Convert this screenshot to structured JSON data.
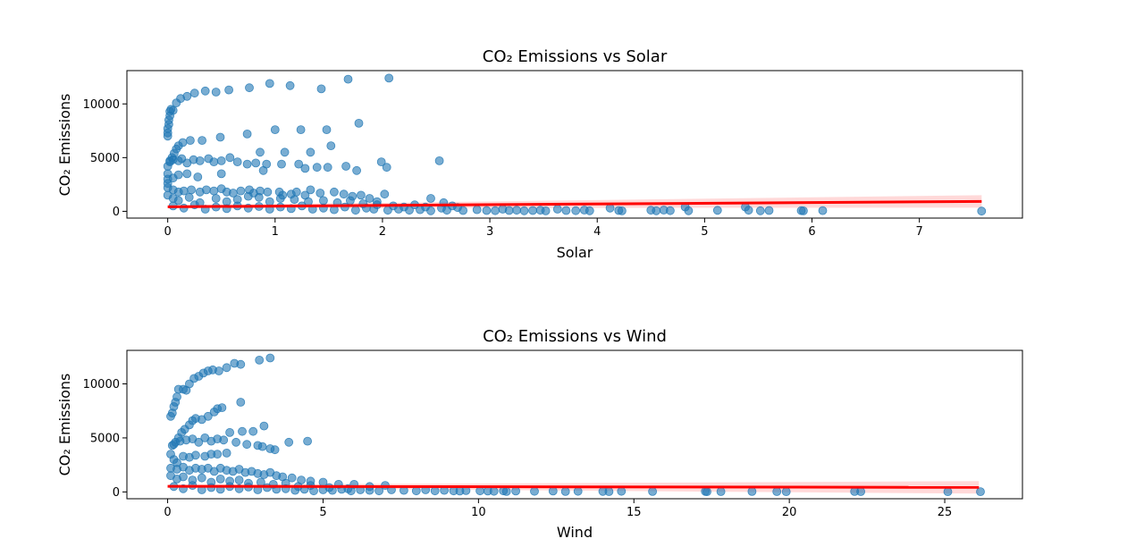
{
  "chart_data": [
    {
      "type": "scatter",
      "title": "CO₂ Emissions vs Solar",
      "xlabel": "Solar",
      "ylabel": "CO₂ Emissions",
      "xlim": [
        -0.38,
        7.96
      ],
      "ylim": [
        -630,
        13100
      ],
      "xticks": [
        0,
        1,
        2,
        3,
        4,
        5,
        6,
        7
      ],
      "yticks": [
        0,
        5000,
        10000
      ],
      "point_color": "#1f77b4",
      "regression": {
        "color": "#ff0000",
        "x": [
          0,
          7.58
        ],
        "y": [
          420,
          920
        ]
      },
      "points": [
        [
          0,
          7000
        ],
        [
          0,
          7300
        ],
        [
          0,
          7700
        ],
        [
          0.01,
          8100
        ],
        [
          0.01,
          8500
        ],
        [
          0.02,
          8900
        ],
        [
          0.02,
          9300
        ],
        [
          0.03,
          9500
        ],
        [
          0.05,
          9400
        ],
        [
          0.08,
          10100
        ],
        [
          0.12,
          10500
        ],
        [
          0.18,
          10700
        ],
        [
          0.25,
          11000
        ],
        [
          0.35,
          11200
        ],
        [
          0.45,
          11100
        ],
        [
          0.57,
          11300
        ],
        [
          0.76,
          11500
        ],
        [
          0.95,
          11900
        ],
        [
          1.14,
          11700
        ],
        [
          1.43,
          11400
        ],
        [
          1.68,
          12300
        ],
        [
          2.06,
          12400
        ],
        [
          0,
          4200
        ],
        [
          0.02,
          4600
        ],
        [
          0.04,
          5000
        ],
        [
          0.06,
          5400
        ],
        [
          0.08,
          5800
        ],
        [
          0.1,
          6100
        ],
        [
          0.14,
          6400
        ],
        [
          0.21,
          6600
        ],
        [
          0.32,
          6600
        ],
        [
          0.49,
          6900
        ],
        [
          0.74,
          7200
        ],
        [
          1.0,
          7600
        ],
        [
          1.24,
          7600
        ],
        [
          1.48,
          7600
        ],
        [
          1.52,
          6100
        ],
        [
          1.78,
          8200
        ],
        [
          0.02,
          4700
        ],
        [
          0.05,
          4800
        ],
        [
          0.1,
          4700
        ],
        [
          0.13,
          4900
        ],
        [
          0.18,
          4500
        ],
        [
          0.24,
          4800
        ],
        [
          0.3,
          4700
        ],
        [
          0.38,
          4900
        ],
        [
          0.43,
          4600
        ],
        [
          0.5,
          4700
        ],
        [
          0.58,
          5000
        ],
        [
          0.65,
          4600
        ],
        [
          0.74,
          4400
        ],
        [
          0.82,
          4500
        ],
        [
          0.86,
          5500
        ],
        [
          0.89,
          3800
        ],
        [
          0.92,
          4400
        ],
        [
          1.06,
          4400
        ],
        [
          1.09,
          5500
        ],
        [
          1.22,
          4400
        ],
        [
          1.28,
          4000
        ],
        [
          1.33,
          5500
        ],
        [
          1.39,
          4100
        ],
        [
          1.49,
          4100
        ],
        [
          1.66,
          4200
        ],
        [
          1.76,
          3800
        ],
        [
          1.99,
          4600
        ],
        [
          2.04,
          4100
        ],
        [
          2.53,
          4700
        ],
        [
          0,
          3500
        ],
        [
          0,
          3000
        ],
        [
          0,
          2600
        ],
        [
          0.05,
          3100
        ],
        [
          0.1,
          3400
        ],
        [
          0.18,
          3500
        ],
        [
          0.28,
          3200
        ],
        [
          0.5,
          3500
        ],
        [
          0,
          2200
        ],
        [
          0.05,
          2000
        ],
        [
          0.1,
          1800
        ],
        [
          0.15,
          1900
        ],
        [
          0.22,
          2000
        ],
        [
          0.3,
          1800
        ],
        [
          0.36,
          2000
        ],
        [
          0.43,
          1900
        ],
        [
          0.5,
          2100
        ],
        [
          0.55,
          1800
        ],
        [
          0.61,
          1700
        ],
        [
          0.68,
          1900
        ],
        [
          0.76,
          2000
        ],
        [
          0.8,
          1700
        ],
        [
          0.86,
          1900
        ],
        [
          0.93,
          1800
        ],
        [
          1.04,
          1800
        ],
        [
          1.07,
          1500
        ],
        [
          1.15,
          1600
        ],
        [
          1.2,
          1800
        ],
        [
          1.28,
          1500
        ],
        [
          1.33,
          2000
        ],
        [
          1.42,
          1700
        ],
        [
          1.55,
          1800
        ],
        [
          1.64,
          1600
        ],
        [
          1.72,
          1400
        ],
        [
          1.8,
          1500
        ],
        [
          1.88,
          1200
        ],
        [
          1.95,
          900
        ],
        [
          2.02,
          1600
        ],
        [
          2.45,
          1200
        ],
        [
          2.57,
          800
        ],
        [
          2.3,
          600
        ],
        [
          2.65,
          500
        ],
        [
          0,
          1500
        ],
        [
          0.05,
          1200
        ],
        [
          0.1,
          1000
        ],
        [
          0.2,
          1300
        ],
        [
          0.3,
          800
        ],
        [
          0.45,
          1200
        ],
        [
          0.55,
          900
        ],
        [
          0.65,
          1100
        ],
        [
          0.75,
          1400
        ],
        [
          0.85,
          1300
        ],
        [
          0.95,
          900
        ],
        [
          1.05,
          1200
        ],
        [
          1.18,
          1100
        ],
        [
          1.31,
          900
        ],
        [
          1.45,
          1000
        ],
        [
          1.58,
          800
        ],
        [
          1.7,
          1000
        ],
        [
          1.82,
          700
        ],
        [
          1.95,
          600
        ],
        [
          2.1,
          500
        ],
        [
          2.2,
          400
        ],
        [
          2.4,
          400
        ],
        [
          2.55,
          300
        ],
        [
          2.7,
          350
        ],
        [
          0.05,
          500
        ],
        [
          0.15,
          300
        ],
        [
          0.25,
          600
        ],
        [
          0.35,
          200
        ],
        [
          0.45,
          400
        ],
        [
          0.55,
          250
        ],
        [
          0.65,
          500
        ],
        [
          0.75,
          300
        ],
        [
          0.85,
          450
        ],
        [
          0.95,
          200
        ],
        [
          1.05,
          400
        ],
        [
          1.15,
          250
        ],
        [
          1.25,
          500
        ],
        [
          1.35,
          200
        ],
        [
          1.45,
          300
        ],
        [
          1.55,
          150
        ],
        [
          1.65,
          400
        ],
        [
          1.75,
          100
        ],
        [
          1.85,
          300
        ],
        [
          1.92,
          200
        ],
        [
          2.05,
          100
        ],
        [
          2.15,
          200
        ],
        [
          2.25,
          100
        ],
        [
          2.35,
          150
        ],
        [
          2.45,
          50
        ],
        [
          2.6,
          100
        ],
        [
          2.75,
          80
        ],
        [
          2.88,
          150
        ],
        [
          2.97,
          80
        ],
        [
          3.05,
          60
        ],
        [
          3.12,
          200
        ],
        [
          3.18,
          80
        ],
        [
          3.25,
          100
        ],
        [
          3.32,
          50
        ],
        [
          3.4,
          80
        ],
        [
          3.47,
          100
        ],
        [
          3.52,
          40
        ],
        [
          3.63,
          200
        ],
        [
          3.71,
          80
        ],
        [
          3.8,
          60
        ],
        [
          3.88,
          120
        ],
        [
          3.93,
          50
        ],
        [
          4.12,
          300
        ],
        [
          4.2,
          80
        ],
        [
          4.23,
          40
        ],
        [
          4.5,
          100
        ],
        [
          4.55,
          50
        ],
        [
          4.62,
          120
        ],
        [
          4.68,
          60
        ],
        [
          4.82,
          400
        ],
        [
          4.85,
          50
        ],
        [
          5.12,
          90
        ],
        [
          5.38,
          400
        ],
        [
          5.41,
          100
        ],
        [
          5.52,
          50
        ],
        [
          5.6,
          80
        ],
        [
          5.9,
          60
        ],
        [
          5.92,
          40
        ],
        [
          6.1,
          70
        ],
        [
          7.58,
          20
        ]
      ]
    },
    {
      "type": "scatter",
      "title": "CO₂ Emissions vs Wind",
      "xlabel": "Wind",
      "ylabel": "CO₂ Emissions",
      "xlim": [
        -1.31,
        27.5
      ],
      "ylim": [
        -630,
        13100
      ],
      "xticks": [
        0,
        5,
        10,
        15,
        20,
        25
      ],
      "yticks": [
        0,
        5000,
        10000
      ],
      "point_color": "#1f77b4",
      "regression": {
        "color": "#ff0000",
        "x": [
          0,
          26.1
        ],
        "y": [
          520,
          420
        ]
      },
      "points": [
        [
          0.1,
          7000
        ],
        [
          0.15,
          7300
        ],
        [
          0.2,
          7900
        ],
        [
          0.25,
          8300
        ],
        [
          0.3,
          8800
        ],
        [
          0.35,
          9500
        ],
        [
          0.5,
          9500
        ],
        [
          0.6,
          9400
        ],
        [
          0.7,
          10000
        ],
        [
          0.85,
          10500
        ],
        [
          1.0,
          10700
        ],
        [
          1.15,
          11000
        ],
        [
          1.3,
          11200
        ],
        [
          1.45,
          11300
        ],
        [
          1.65,
          11200
        ],
        [
          1.9,
          11500
        ],
        [
          2.15,
          11900
        ],
        [
          2.35,
          11800
        ],
        [
          2.95,
          12200
        ],
        [
          3.3,
          12400
        ],
        [
          0.15,
          4300
        ],
        [
          0.25,
          4600
        ],
        [
          0.35,
          5000
        ],
        [
          0.45,
          5500
        ],
        [
          0.55,
          5800
        ],
        [
          0.7,
          6200
        ],
        [
          0.8,
          6600
        ],
        [
          0.9,
          6800
        ],
        [
          1.1,
          6700
        ],
        [
          1.3,
          7000
        ],
        [
          1.5,
          7400
        ],
        [
          1.6,
          7700
        ],
        [
          1.75,
          7800
        ],
        [
          2.35,
          8300
        ],
        [
          3.1,
          6100
        ],
        [
          0.2,
          4400
        ],
        [
          0.4,
          4700
        ],
        [
          0.6,
          4800
        ],
        [
          0.8,
          4900
        ],
        [
          1.0,
          4600
        ],
        [
          1.2,
          5000
        ],
        [
          1.4,
          4700
        ],
        [
          1.6,
          4900
        ],
        [
          1.8,
          4800
        ],
        [
          2.0,
          5500
        ],
        [
          2.2,
          4600
        ],
        [
          2.4,
          5600
        ],
        [
          2.55,
          4400
        ],
        [
          2.75,
          5600
        ],
        [
          2.9,
          4300
        ],
        [
          3.05,
          4200
        ],
        [
          3.3,
          4000
        ],
        [
          3.45,
          3900
        ],
        [
          3.9,
          4600
        ],
        [
          4.5,
          4700
        ],
        [
          0.1,
          3500
        ],
        [
          0.2,
          3000
        ],
        [
          0.3,
          2700
        ],
        [
          0.5,
          3300
        ],
        [
          0.7,
          3200
        ],
        [
          0.9,
          3400
        ],
        [
          1.2,
          3300
        ],
        [
          1.4,
          3500
        ],
        [
          1.6,
          3500
        ],
        [
          1.9,
          3600
        ],
        [
          0.1,
          2200
        ],
        [
          0.3,
          2100
        ],
        [
          0.5,
          2300
        ],
        [
          0.7,
          2000
        ],
        [
          0.9,
          2200
        ],
        [
          1.1,
          2100
        ],
        [
          1.3,
          2200
        ],
        [
          1.5,
          1900
        ],
        [
          1.7,
          2200
        ],
        [
          1.9,
          2000
        ],
        [
          2.1,
          1900
        ],
        [
          2.3,
          2100
        ],
        [
          2.5,
          1800
        ],
        [
          2.7,
          1900
        ],
        [
          2.9,
          1700
        ],
        [
          3.1,
          1600
        ],
        [
          3.3,
          1800
        ],
        [
          3.5,
          1500
        ],
        [
          3.7,
          1400
        ],
        [
          4.0,
          1300
        ],
        [
          4.3,
          1100
        ],
        [
          4.6,
          1000
        ],
        [
          5.0,
          900
        ],
        [
          5.5,
          700
        ],
        [
          6.0,
          700
        ],
        [
          6.5,
          500
        ],
        [
          7.0,
          600
        ],
        [
          0.1,
          1500
        ],
        [
          0.3,
          1200
        ],
        [
          0.5,
          1400
        ],
        [
          0.8,
          1100
        ],
        [
          1.1,
          1300
        ],
        [
          1.4,
          900
        ],
        [
          1.7,
          1200
        ],
        [
          2.0,
          1000
        ],
        [
          2.3,
          1100
        ],
        [
          2.6,
          800
        ],
        [
          3.0,
          900
        ],
        [
          3.4,
          700
        ],
        [
          3.8,
          800
        ],
        [
          4.2,
          500
        ],
        [
          4.6,
          600
        ],
        [
          5.2,
          400
        ],
        [
          5.8,
          300
        ],
        [
          0.2,
          500
        ],
        [
          0.5,
          300
        ],
        [
          0.8,
          600
        ],
        [
          1.1,
          200
        ],
        [
          1.4,
          400
        ],
        [
          1.7,
          250
        ],
        [
          2.0,
          500
        ],
        [
          2.3,
          300
        ],
        [
          2.6,
          450
        ],
        [
          2.9,
          200
        ],
        [
          3.2,
          400
        ],
        [
          3.5,
          250
        ],
        [
          3.8,
          300
        ],
        [
          4.1,
          150
        ],
        [
          4.4,
          250
        ],
        [
          4.7,
          100
        ],
        [
          5.0,
          200
        ],
        [
          5.3,
          150
        ],
        [
          5.6,
          250
        ],
        [
          5.9,
          100
        ],
        [
          6.2,
          200
        ],
        [
          6.5,
          150
        ],
        [
          6.8,
          100
        ],
        [
          7.2,
          200
        ],
        [
          7.6,
          150
        ],
        [
          8.0,
          100
        ],
        [
          8.3,
          200
        ],
        [
          8.6,
          100
        ],
        [
          8.9,
          150
        ],
        [
          9.2,
          100
        ],
        [
          9.4,
          80
        ],
        [
          9.6,
          120
        ],
        [
          10.05,
          100
        ],
        [
          10.3,
          80
        ],
        [
          10.5,
          60
        ],
        [
          10.8,
          100
        ],
        [
          10.9,
          40
        ],
        [
          11.2,
          80
        ],
        [
          11.8,
          60
        ],
        [
          12.4,
          80
        ],
        [
          12.8,
          40
        ],
        [
          13.2,
          60
        ],
        [
          14.0,
          50
        ],
        [
          14.2,
          30
        ],
        [
          14.6,
          60
        ],
        [
          15.6,
          40
        ],
        [
          17.3,
          50
        ],
        [
          17.35,
          20
        ],
        [
          17.8,
          30
        ],
        [
          18.8,
          40
        ],
        [
          19.6,
          30
        ],
        [
          19.9,
          20
        ],
        [
          22.1,
          40
        ],
        [
          22.3,
          30
        ],
        [
          25.1,
          20
        ],
        [
          26.15,
          20
        ]
      ]
    }
  ]
}
